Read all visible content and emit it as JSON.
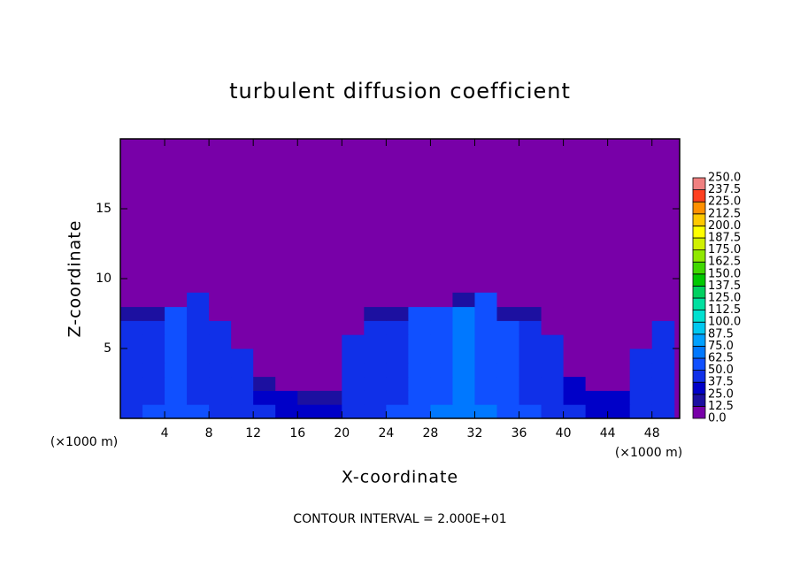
{
  "chart_data": {
    "type": "contour",
    "title": "turbulent diffusion coefficient",
    "x_label": "X-coordinate",
    "y_label": "Z-coordinate",
    "x_unit": "(×1000 m)",
    "footer": "CONTOUR INTERVAL = 2.000E+01",
    "xlim": [
      0,
      50.5
    ],
    "ylim": [
      0,
      20
    ],
    "xticks": [
      4,
      8,
      12,
      16,
      20,
      24,
      28,
      32,
      36,
      40,
      44,
      48
    ],
    "yticks": [
      5,
      10,
      15
    ],
    "x_edges": [
      0,
      2,
      4,
      6,
      8,
      10,
      12,
      14,
      16,
      18,
      20,
      22,
      24,
      26,
      28,
      30,
      32,
      34,
      36,
      38,
      40,
      42,
      44,
      46,
      48,
      50
    ],
    "z_edges": [
      0,
      1,
      2,
      3,
      4,
      5,
      6,
      7,
      8,
      9
    ],
    "values": [
      [
        45,
        50,
        60,
        50,
        45,
        45,
        40,
        35,
        35,
        35,
        45,
        45,
        50,
        60,
        65,
        70,
        65,
        55,
        50,
        45,
        40,
        35,
        35,
        45,
        45
      ],
      [
        40,
        45,
        55,
        45,
        40,
        40,
        35,
        30,
        20,
        20,
        40,
        40,
        45,
        55,
        60,
        65,
        60,
        50,
        45,
        40,
        35,
        30,
        30,
        40,
        40
      ],
      [
        40,
        45,
        55,
        45,
        40,
        40,
        20,
        0,
        0,
        0,
        40,
        40,
        45,
        55,
        60,
        65,
        60,
        50,
        45,
        40,
        35,
        0,
        0,
        40,
        40
      ],
      [
        40,
        45,
        55,
        45,
        40,
        40,
        0,
        0,
        0,
        0,
        40,
        40,
        45,
        55,
        60,
        65,
        60,
        50,
        45,
        40,
        0,
        0,
        0,
        40,
        40
      ],
      [
        40,
        45,
        55,
        45,
        40,
        40,
        0,
        0,
        0,
        0,
        40,
        40,
        45,
        55,
        60,
        65,
        60,
        50,
        45,
        40,
        0,
        0,
        0,
        40,
        40
      ],
      [
        40,
        45,
        55,
        45,
        40,
        0,
        0,
        0,
        0,
        0,
        40,
        40,
        45,
        55,
        60,
        65,
        60,
        50,
        45,
        40,
        0,
        0,
        0,
        0,
        40
      ],
      [
        40,
        45,
        55,
        45,
        40,
        0,
        0,
        0,
        0,
        0,
        0,
        40,
        45,
        55,
        60,
        65,
        60,
        50,
        45,
        0,
        0,
        0,
        0,
        0,
        40
      ],
      [
        20,
        20,
        55,
        45,
        0,
        0,
        0,
        0,
        0,
        0,
        0,
        20,
        20,
        55,
        60,
        65,
        60,
        20,
        20,
        0,
        0,
        0,
        0,
        0,
        0
      ],
      [
        0,
        0,
        0,
        45,
        0,
        0,
        0,
        0,
        0,
        0,
        0,
        0,
        0,
        0,
        0,
        20,
        60,
        0,
        0,
        0,
        0,
        0,
        0,
        0,
        0
      ]
    ],
    "colorbar": {
      "levels": [
        {
          "value": 0,
          "label": "0.0"
        },
        {
          "value": 12.5,
          "label": "12.5"
        },
        {
          "value": 25,
          "label": "25.0"
        },
        {
          "value": 37.5,
          "label": "37.5"
        },
        {
          "value": 50,
          "label": "50.0"
        },
        {
          "value": 62.5,
          "label": "62.5"
        },
        {
          "value": 75,
          "label": "75.0"
        },
        {
          "value": 87.5,
          "label": "87.5"
        },
        {
          "value": 100,
          "label": "100.0"
        },
        {
          "value": 112.5,
          "label": "112.5"
        },
        {
          "value": 125,
          "label": "125.0"
        },
        {
          "value": 137.5,
          "label": "137.5"
        },
        {
          "value": 150,
          "label": "150.0"
        },
        {
          "value": 162.5,
          "label": "162.5"
        },
        {
          "value": 175,
          "label": "175.0"
        },
        {
          "value": 187.5,
          "label": "187.5"
        },
        {
          "value": 200,
          "label": "200.0"
        },
        {
          "value": 212.5,
          "label": "212.5"
        },
        {
          "value": 225,
          "label": "225.0"
        },
        {
          "value": 237.5,
          "label": "237.5"
        },
        {
          "value": 250,
          "label": "250.0"
        }
      ],
      "colors": [
        "#7800a8",
        "#1c10a0",
        "#0000c8",
        "#1030e8",
        "#1050ff",
        "#0078ff",
        "#00a0ff",
        "#00c8f0",
        "#00e0d0",
        "#00e0a0",
        "#00d060",
        "#00c800",
        "#40d800",
        "#90e800",
        "#d0f000",
        "#ffff00",
        "#ffc800",
        "#ff9000",
        "#ff4020",
        "#f08080"
      ]
    }
  }
}
